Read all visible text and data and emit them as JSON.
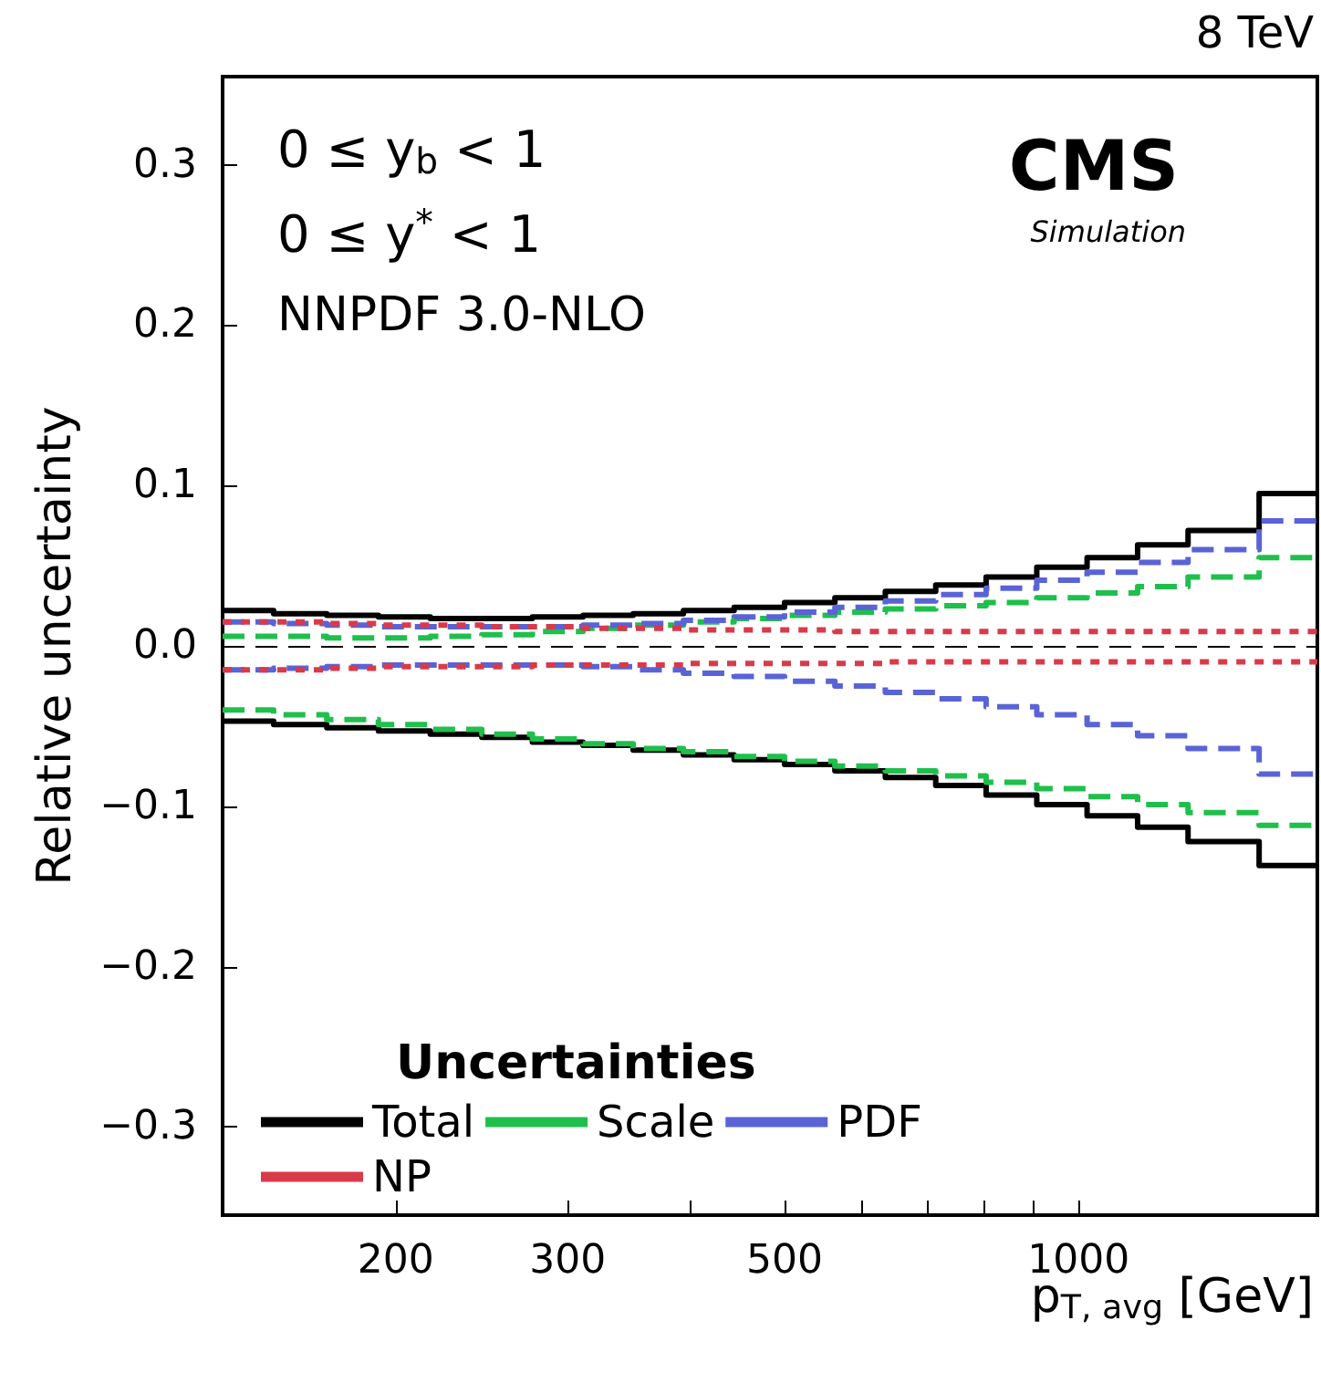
{
  "chart_data": {
    "type": "step",
    "xlabel": "p$_{T, avg}$ [GeV]",
    "ylabel": "Relative uncertainty",
    "legend_title": "Uncertainties",
    "x": [
      133,
      150,
      170,
      192,
      217,
      245,
      276,
      311,
      350,
      394,
      444,
      500,
      563,
      634,
      714,
      804,
      906,
      1020,
      1149,
      1294,
      1530,
      1755
    ],
    "series": [
      {
        "name": "Total",
        "color": "#000000",
        "line_style": "solid",
        "values": [
          0.022,
          0.02,
          0.019,
          0.018,
          0.017,
          0.017,
          0.018,
          0.019,
          0.02,
          0.022,
          0.024,
          0.027,
          0.03,
          0.034,
          0.038,
          0.043,
          0.049,
          0.055,
          0.063,
          0.072,
          0.095,
          0.095
        ]
      },
      {
        "name": "Scale",
        "color": "#1fbf4c",
        "line_style": "dashed",
        "values": [
          0.006,
          0.006,
          0.005,
          0.005,
          0.006,
          0.007,
          0.009,
          0.011,
          0.013,
          0.015,
          0.017,
          0.019,
          0.021,
          0.023,
          0.025,
          0.027,
          0.03,
          0.033,
          0.037,
          0.043,
          0.055,
          0.055
        ]
      },
      {
        "name": "PDF",
        "color": "#5a63d6",
        "line_style": "dashed",
        "values": [
          0.015,
          0.014,
          0.013,
          0.012,
          0.012,
          0.012,
          0.012,
          0.013,
          0.014,
          0.016,
          0.018,
          0.021,
          0.024,
          0.028,
          0.032,
          0.036,
          0.041,
          0.046,
          0.052,
          0.06,
          0.078,
          0.078
        ]
      },
      {
        "name": "NP",
        "color": "#d93a4a",
        "line_style": "dotted",
        "values": [
          0.015,
          0.015,
          0.014,
          0.013,
          0.013,
          0.012,
          0.012,
          0.011,
          0.011,
          0.01,
          0.01,
          0.01,
          0.009,
          0.009,
          0.009,
          0.009,
          0.009,
          0.009,
          0.009,
          0.009,
          0.009,
          0.009
        ]
      },
      {
        "color": "#000000",
        "line_style": "solid",
        "values": [
          -0.047,
          -0.049,
          -0.051,
          -0.053,
          -0.055,
          -0.057,
          -0.06,
          -0.062,
          -0.065,
          -0.068,
          -0.071,
          -0.074,
          -0.078,
          -0.082,
          -0.087,
          -0.093,
          -0.099,
          -0.106,
          -0.113,
          -0.122,
          -0.137,
          -0.137
        ]
      },
      {
        "color": "#1fbf4c",
        "line_style": "dashed",
        "values": [
          -0.04,
          -0.043,
          -0.046,
          -0.049,
          -0.052,
          -0.055,
          -0.058,
          -0.061,
          -0.064,
          -0.066,
          -0.069,
          -0.072,
          -0.075,
          -0.078,
          -0.081,
          -0.085,
          -0.089,
          -0.094,
          -0.099,
          -0.104,
          -0.112,
          -0.112
        ]
      },
      {
        "color": "#5a63d6",
        "line_style": "dashed",
        "values": [
          -0.015,
          -0.014,
          -0.013,
          -0.012,
          -0.012,
          -0.012,
          -0.012,
          -0.013,
          -0.015,
          -0.017,
          -0.019,
          -0.022,
          -0.025,
          -0.029,
          -0.033,
          -0.038,
          -0.043,
          -0.049,
          -0.056,
          -0.064,
          -0.08,
          -0.08
        ]
      },
      {
        "color": "#d93a4a",
        "line_style": "dotted",
        "values": [
          -0.015,
          -0.015,
          -0.014,
          -0.013,
          -0.013,
          -0.013,
          -0.012,
          -0.012,
          -0.012,
          -0.011,
          -0.011,
          -0.011,
          -0.011,
          -0.01,
          -0.01,
          -0.01,
          -0.01,
          -0.01,
          -0.01,
          -0.01,
          -0.01,
          -0.01
        ]
      }
    ],
    "log": "x",
    "xlim": [
      133,
      1755
    ],
    "ylim": [
      -0.355,
      0.355
    ],
    "xticks": [
      200,
      300,
      {
        "value": 400,
        "label": null
      },
      500,
      {
        "value": 600,
        "label": null
      },
      {
        "value": 700,
        "label": null
      },
      {
        "value": 800,
        "label": null
      },
      {
        "value": 900,
        "label": null
      },
      1000
    ],
    "yticks": [
      -0.3,
      -0.2,
      -0.1,
      {
        "value": 0,
        "label": "0.0"
      },
      0.1,
      0.2,
      0.3
    ],
    "ref_lines": [
      {
        "axis": "y",
        "value": 0,
        "color": "#000000",
        "line_style": "dashed"
      }
    ],
    "grid": false,
    "legend": "bottom left",
    "annotations": [
      "0 ≤ y$_{b}$ < 1",
      "0 ≤ y$^{*}$ < 1",
      "NNPDF 3.0-NLO",
      "CMS",
      "Simulation",
      "8 TeV"
    ]
  }
}
